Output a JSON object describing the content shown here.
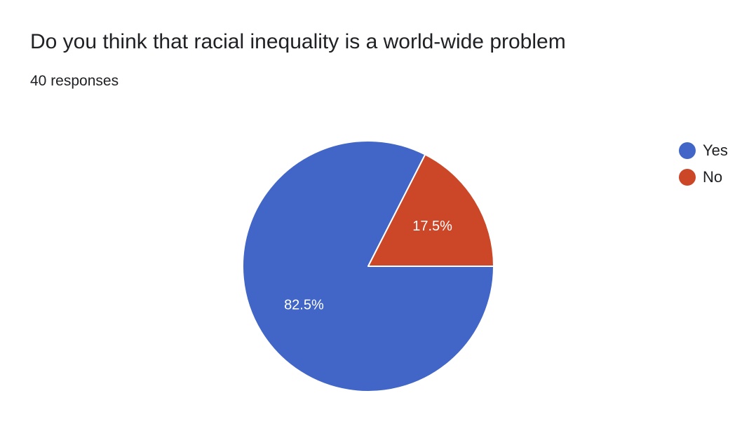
{
  "header": {
    "title": "Do you think that racial inequality is a world-wide problem",
    "subtitle": "40 responses"
  },
  "chart_data": {
    "type": "pie",
    "title": "Do you think that racial inequality is a world-wide problem",
    "categories": [
      "Yes",
      "No"
    ],
    "values": [
      82.5,
      17.5
    ],
    "data_labels": [
      "82.5%",
      "17.5%"
    ],
    "colors": [
      "#4166c7",
      "#cc4628"
    ],
    "legend_position": "right"
  }
}
